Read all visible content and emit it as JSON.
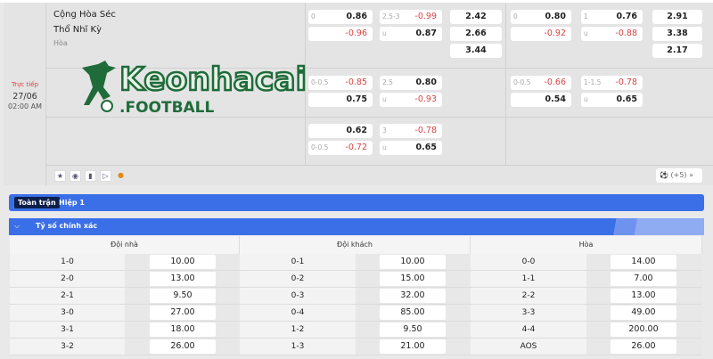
{
  "match": {
    "home": "Cộng Hòa Séc",
    "away": "Thổ Nhĩ Kỳ",
    "draw": "Hòa",
    "status": "Trực tiếp",
    "date": "27/06",
    "time": "02:00 AM",
    "rows": [
      {
        "ft_hdp": [
          {
            "label": "0",
            "value": "0.86"
          },
          {
            "label": "",
            "value": "-0.96"
          }
        ],
        "ft_ou": [
          {
            "label": "2.5-3",
            "value": "-0.99"
          },
          {
            "label": "u",
            "value": "0.87"
          }
        ],
        "ft_1x2": [
          "2.42",
          "2.66",
          "3.44"
        ],
        "h1_hdp": [
          {
            "label": "0",
            "value": "0.80"
          },
          {
            "label": "",
            "value": "-0.92"
          }
        ],
        "h1_ou": [
          {
            "label": "1",
            "value": "0.76"
          },
          {
            "label": "u",
            "value": "-0.88"
          }
        ],
        "h1_1x2": [
          "2.91",
          "3.38",
          "2.17"
        ]
      },
      {
        "ft_hdp": [
          {
            "label": "0-0.5",
            "value": "-0.85"
          },
          {
            "label": "",
            "value": "0.75"
          }
        ],
        "ft_ou": [
          {
            "label": "2.5",
            "value": "0.80"
          },
          {
            "label": "u",
            "value": "-0.93"
          }
        ],
        "ft_1x2": [],
        "h1_hdp": [
          {
            "label": "0-0.5",
            "value": "-0.66"
          },
          {
            "label": "",
            "value": "0.54"
          }
        ],
        "h1_ou": [
          {
            "label": "1-1.5",
            "value": "-0.78"
          },
          {
            "label": "u",
            "value": "0.65"
          }
        ],
        "h1_1x2": []
      },
      {
        "ft_hdp": [
          {
            "label": "",
            "value": "0.62"
          },
          {
            "label": "0-0.5",
            "value": "-0.72"
          }
        ],
        "ft_ou": [
          {
            "label": "3",
            "value": "-0.78"
          },
          {
            "label": "u",
            "value": "0.65"
          }
        ],
        "ft_1x2": [],
        "h1_hdp": [],
        "h1_ou": [],
        "h1_1x2": []
      }
    ],
    "icons": [
      "star-icon",
      "eye-icon",
      "stats-icon",
      "play-icon",
      "fire-icon"
    ],
    "more_label": "(+5)"
  },
  "watermark": {
    "text": "Keonhacai",
    "sub": ".FOOTBALL"
  },
  "tabs": [
    {
      "label": "Toàn trận",
      "active": true
    },
    {
      "label": "Hiệp 1",
      "active": false
    }
  ],
  "section": {
    "title": "Tỷ số chính xác"
  },
  "colors": {
    "accent": "#3b6fe8",
    "negative": "#d64545"
  },
  "scores": {
    "headers": [
      "Đội nhà",
      "Đội khách",
      "Hòa"
    ],
    "columns": [
      [
        [
          "1-0",
          "10.00"
        ],
        [
          "2-0",
          "13.00"
        ],
        [
          "2-1",
          "9.50"
        ],
        [
          "3-0",
          "27.00"
        ],
        [
          "3-1",
          "18.00"
        ],
        [
          "3-2",
          "26.00"
        ]
      ],
      [
        [
          "0-1",
          "10.00"
        ],
        [
          "0-2",
          "15.00"
        ],
        [
          "0-3",
          "32.00"
        ],
        [
          "0-4",
          "85.00"
        ],
        [
          "1-2",
          "9.50"
        ],
        [
          "1-3",
          "21.00"
        ]
      ],
      [
        [
          "0-0",
          "14.00"
        ],
        [
          "1-1",
          "7.00"
        ],
        [
          "2-2",
          "13.00"
        ],
        [
          "3-3",
          "49.00"
        ],
        [
          "4-4",
          "200.00"
        ],
        [
          "AOS",
          "26.00"
        ]
      ]
    ]
  }
}
